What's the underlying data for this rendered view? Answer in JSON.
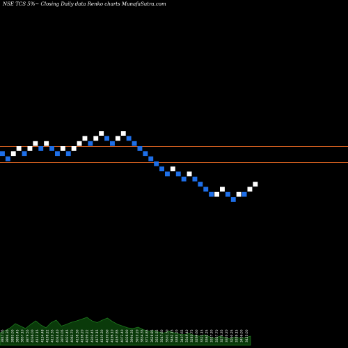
{
  "title": "NSE TCS 5%~  Closing Daily data  Renko  charts MunafaSutra.com",
  "colors": {
    "background": "#000000",
    "up_brick": "#ffffff",
    "down_brick": "#1e6fe8",
    "level_line": "#c85a1e",
    "volume_fill": "#0a3a0a",
    "volume_line": "#1f7a1f",
    "volume_label": "#ffffff"
  },
  "chart_data": {
    "type": "renko",
    "title": "NSE TCS 5%~  Closing Daily data  Renko  charts MunafaSutra.com",
    "bricks": [
      {
        "dir": "down",
        "level": 0
      },
      {
        "dir": "down",
        "level": -1
      },
      {
        "dir": "up",
        "level": 0
      },
      {
        "dir": "up",
        "level": 1
      },
      {
        "dir": "down",
        "level": 0
      },
      {
        "dir": "up",
        "level": 1
      },
      {
        "dir": "up",
        "level": 2
      },
      {
        "dir": "down",
        "level": 1
      },
      {
        "dir": "up",
        "level": 2
      },
      {
        "dir": "down",
        "level": 1
      },
      {
        "dir": "down",
        "level": 0
      },
      {
        "dir": "up",
        "level": 1
      },
      {
        "dir": "down",
        "level": 0
      },
      {
        "dir": "up",
        "level": 1
      },
      {
        "dir": "up",
        "level": 2
      },
      {
        "dir": "up",
        "level": 3
      },
      {
        "dir": "down",
        "level": 2
      },
      {
        "dir": "up",
        "level": 3
      },
      {
        "dir": "up",
        "level": 4
      },
      {
        "dir": "down",
        "level": 3
      },
      {
        "dir": "down",
        "level": 2
      },
      {
        "dir": "up",
        "level": 3
      },
      {
        "dir": "up",
        "level": 4
      },
      {
        "dir": "down",
        "level": 3
      },
      {
        "dir": "down",
        "level": 2
      },
      {
        "dir": "down",
        "level": 1
      },
      {
        "dir": "down",
        "level": 0
      },
      {
        "dir": "down",
        "level": -1
      },
      {
        "dir": "down",
        "level": -2
      },
      {
        "dir": "down",
        "level": -3
      },
      {
        "dir": "down",
        "level": -4
      },
      {
        "dir": "up",
        "level": -3
      },
      {
        "dir": "down",
        "level": -4
      },
      {
        "dir": "down",
        "level": -5
      },
      {
        "dir": "up",
        "level": -4
      },
      {
        "dir": "down",
        "level": -5
      },
      {
        "dir": "down",
        "level": -6
      },
      {
        "dir": "down",
        "level": -7
      },
      {
        "dir": "down",
        "level": -8
      },
      {
        "dir": "up",
        "level": -8
      },
      {
        "dir": "up",
        "level": -7
      },
      {
        "dir": "down",
        "level": -8
      },
      {
        "dir": "down",
        "level": -9
      },
      {
        "dir": "up",
        "level": -8
      },
      {
        "dir": "down",
        "level": -8
      },
      {
        "dir": "up",
        "level": -7
      },
      {
        "dir": "up",
        "level": -6
      }
    ],
    "level_lines": [
      1,
      -1
    ],
    "volume_labels": [
      "3847.05",
      "3894.35",
      "3883.00",
      "3895.45",
      "3857.10",
      "3879.55",
      "4036.00",
      "4112.15",
      "4154.48",
      "4198.22",
      "4110.35",
      "4044.40",
      "3970.05",
      "4023.45",
      "4061.70",
      "4138.30",
      "4198.20",
      "4299.22",
      "4303.45",
      "4170.15",
      "4105.30",
      "4190.60",
      "4196.10",
      "4167.85",
      "4073.40",
      "4026.90",
      "3994.35",
      "3910.20",
      "3834.35",
      "3714.85",
      "3628.85",
      "3551.55",
      "3547.60",
      "3501.30",
      "3462.15",
      "3383.20",
      "3407.65",
      "3349.40",
      "3283.75",
      "3269.60",
      "3321.15",
      "3362.25",
      "3327.30",
      "3357.70",
      "3274.35",
      "3320.20",
      "3290.25",
      "3339.15",
      "3406.00",
      "3425.00"
    ],
    "volume_heights": [
      0.35,
      0.42,
      0.5,
      0.62,
      0.55,
      0.48,
      0.6,
      0.7,
      0.58,
      0.5,
      0.65,
      0.72,
      0.55,
      0.6,
      0.66,
      0.7,
      0.75,
      0.8,
      0.7,
      0.65,
      0.72,
      0.78,
      0.68,
      0.6,
      0.55,
      0.5,
      0.48,
      0.52,
      0.45,
      0.4,
      0.42,
      0.38,
      0.35,
      0.4,
      0.36,
      0.32,
      0.3,
      0.34,
      0.28,
      0.26,
      0.3,
      0.24,
      0.2,
      0.26,
      0.22,
      0.18,
      0.24,
      0.2,
      0.22,
      0.26
    ]
  }
}
